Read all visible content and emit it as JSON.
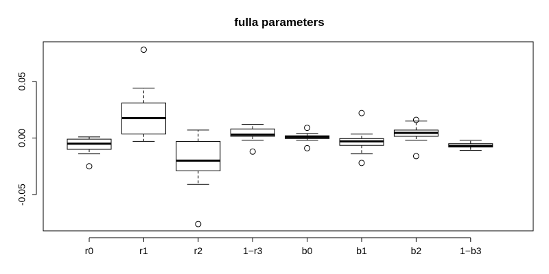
{
  "chart_data": {
    "type": "boxplot",
    "title": "fulla parameters",
    "xlabel": "",
    "ylabel": "",
    "ylim": [
      -0.082,
      0.085
    ],
    "yticks": [
      -0.05,
      0.0,
      0.05
    ],
    "ytick_labels": [
      "-0.05",
      "0.00",
      "0.05"
    ],
    "categories": [
      "r0",
      "r1",
      "r2",
      "1−r3",
      "b0",
      "b1",
      "b2",
      "1−b3"
    ],
    "boxes": [
      {
        "name": "r0",
        "whisker_low": -0.014,
        "q1": -0.01,
        "median": -0.005,
        "q3": -0.001,
        "whisker_high": 0.001,
        "outliers": [
          -0.025
        ]
      },
      {
        "name": "r1",
        "whisker_low": -0.003,
        "q1": 0.0035,
        "median": 0.0175,
        "q3": 0.031,
        "whisker_high": 0.044,
        "outliers": [
          0.078
        ]
      },
      {
        "name": "r2",
        "whisker_low": -0.041,
        "q1": -0.029,
        "median": -0.02,
        "q3": -0.003,
        "whisker_high": 0.007,
        "outliers": [
          -0.076
        ]
      },
      {
        "name": "1−r3",
        "whisker_low": -0.002,
        "q1": 0.0015,
        "median": 0.003,
        "q3": 0.008,
        "whisker_high": 0.012,
        "outliers": [
          -0.012
        ]
      },
      {
        "name": "b0",
        "whisker_low": -0.002,
        "q1": -0.0005,
        "median": 0.0008,
        "q3": 0.002,
        "whisker_high": 0.004,
        "outliers": [
          0.009,
          -0.009
        ]
      },
      {
        "name": "b1",
        "whisker_low": -0.014,
        "q1": -0.0065,
        "median": -0.003,
        "q3": -0.0005,
        "whisker_high": 0.0035,
        "outliers": [
          0.022,
          -0.022
        ]
      },
      {
        "name": "b2",
        "whisker_low": -0.002,
        "q1": 0.0015,
        "median": 0.0045,
        "q3": 0.007,
        "whisker_high": 0.015,
        "outliers": [
          0.016,
          -0.016
        ]
      },
      {
        "name": "1−b3",
        "whisker_low": -0.011,
        "q1": -0.008,
        "median": -0.007,
        "q3": -0.005,
        "whisker_high": -0.002,
        "outliers": []
      }
    ]
  }
}
